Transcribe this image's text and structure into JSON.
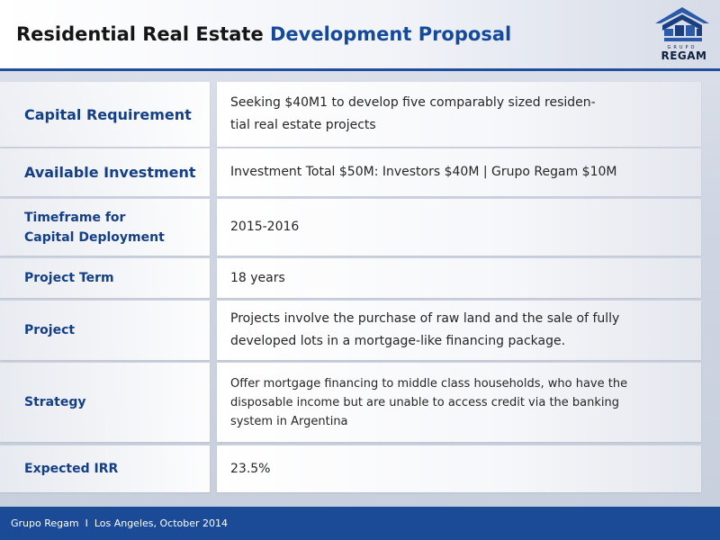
{
  "header": {
    "title_part1": "Residential Real Estate",
    "title_part2": "Development Proposal",
    "logo_top": "GRUPO",
    "logo_name": "REGAM"
  },
  "rows": [
    {
      "label": "Capital Requirement",
      "value": "Seeking $40M1 to develop five comparably sized residen-\ntial real estate projects"
    },
    {
      "label": "Available Investment",
      "value": "Investment Total $50M: Investors $40M | Grupo Regam $10M"
    },
    {
      "label": "Timeframe for\nCapital Deployment",
      "value": "2015-2016"
    },
    {
      "label": "Project Term",
      "value": "18 years"
    },
    {
      "label": "Project",
      "value": "Projects involve the purchase of raw land and the sale of fully developed lots in a mortgage-like financing package."
    },
    {
      "label": "Strategy",
      "value": "Offer mortgage financing to middle class households, who have the disposable income but are unable to access credit via the banking system in Argentina"
    },
    {
      "label": "Expected IRR",
      "value": "23.5%"
    }
  ],
  "footer": {
    "text": "Grupo Regam  I  Los Angeles, October 2014"
  },
  "colors": {
    "brand_blue": "#154a9b",
    "footer_blue": "#1b4a96"
  }
}
